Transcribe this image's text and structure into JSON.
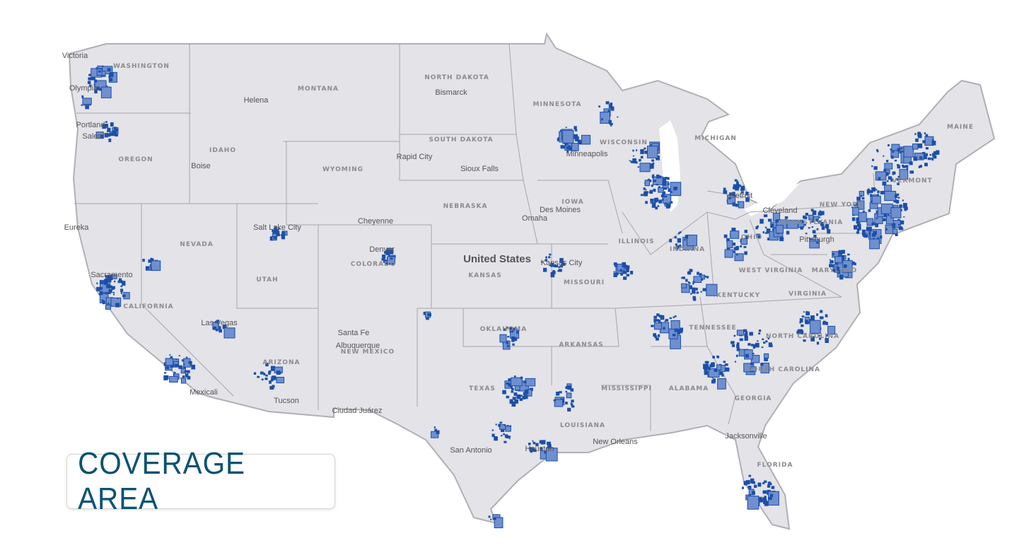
{
  "title": "COVERAGE AREA",
  "colors": {
    "land": "#e3e3e8",
    "border": "#a6a6aa",
    "coverage": "#1c4fa8",
    "coverage_light": "#6f8fcf",
    "water_gray": "#8f8f93",
    "text": "#0b5274"
  },
  "country_label": "United States",
  "states": [
    "WASHINGTON",
    "OREGON",
    "CALIFORNIA",
    "NEVADA",
    "IDAHO",
    "MONTANA",
    "WYOMING",
    "UTAH",
    "COLORADO",
    "ARIZONA",
    "NEW MEXICO",
    "NORTH DAKOTA",
    "SOUTH DAKOTA",
    "NEBRASKA",
    "KANSAS",
    "OKLAHOMA",
    "TEXAS",
    "MINNESOTA",
    "IOWA",
    "MISSOURI",
    "ARKANSAS",
    "LOUISIANA",
    "WISCONSIN",
    "ILLINOIS",
    "MICHIGAN",
    "INDIANA",
    "OHIO",
    "KENTUCKY",
    "TENNESSEE",
    "MISSISSIPPI",
    "ALABAMA",
    "GEORGIA",
    "FLORIDA",
    "SOUTH CAROLINA",
    "NORTH CAROLINA",
    "VIRGINIA",
    "WEST VIRGINIA",
    "PENNSYLVANIA",
    "NEW YORK",
    "VERMONT",
    "MAINE",
    "MARYLAND"
  ],
  "cities": [
    "Victoria",
    "Olympia",
    "Portland",
    "Salem",
    "Helena",
    "Boise",
    "Bismarck",
    "Rapid City",
    "Sioux Falls",
    "Minneapolis",
    "Cheyenne",
    "Denver",
    "Salt Lake City",
    "Omaha",
    "Des Moines",
    "Kansas City",
    "Sacramento",
    "Eureka",
    "Las Vegas",
    "Santa Fe",
    "Albuquerque",
    "Tucson",
    "Mexicali",
    "Ciudad Juárez",
    "San Antonio",
    "Houston",
    "New Orleans",
    "Jacksonville",
    "Detroit",
    "Cleveland",
    "Pittsburgh"
  ]
}
